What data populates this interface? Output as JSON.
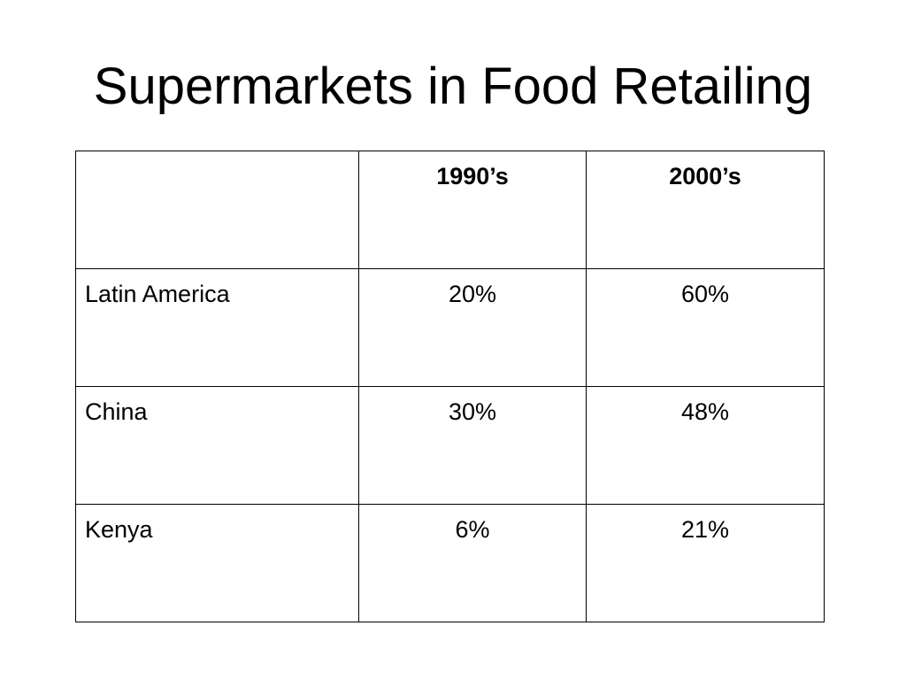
{
  "slide": {
    "title": "Supermarkets in Food Retailing"
  },
  "table": {
    "corner": "",
    "columns": [
      "1990’s",
      "2000’s"
    ],
    "rows": [
      {
        "label": "Latin America",
        "values": [
          "20%",
          "60%"
        ]
      },
      {
        "label": "China",
        "values": [
          "30%",
          "48%"
        ]
      },
      {
        "label": "Kenya",
        "values": [
          "6%",
          "21%"
        ]
      }
    ]
  }
}
